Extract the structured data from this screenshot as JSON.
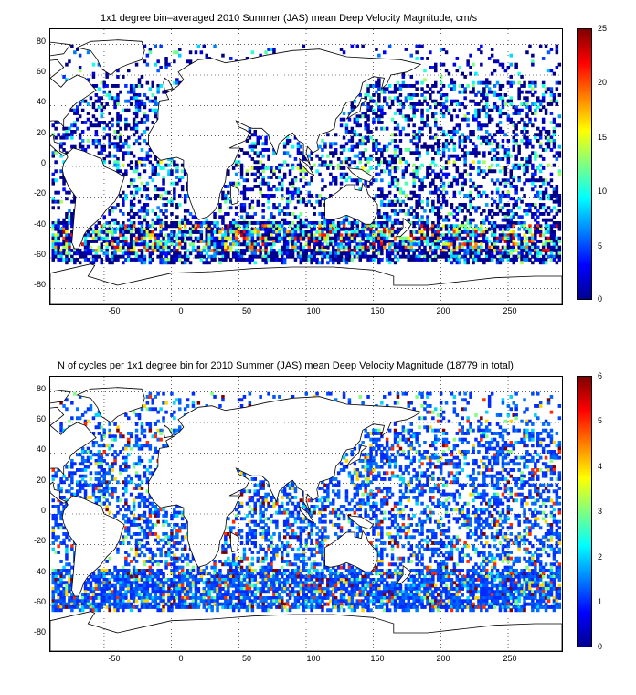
{
  "panels": [
    {
      "title": "1x1 degree bin–averaged 2010 Summer (JAS) mean Deep Velocity Magnitude, cm/s",
      "yticks": [
        "80",
        "60",
        "40",
        "20",
        "0",
        "-20",
        "-40",
        "-60",
        "-80"
      ],
      "xticks": [
        "-50",
        "0",
        "50",
        "100",
        "150",
        "200",
        "250"
      ],
      "colorbar_ticks": [
        "25",
        "20",
        "15",
        "10",
        "5",
        "0"
      ],
      "colorbar_range": [
        0,
        25
      ]
    },
    {
      "title": "N of cycles per 1x1 degree bin for 2010 Summer (JAS) mean Deep Velocity Magnitude (18779 in total)",
      "yticks": [
        "80",
        "60",
        "40",
        "20",
        "0",
        "-20",
        "-40",
        "-60",
        "-80"
      ],
      "xticks": [
        "-50",
        "0",
        "50",
        "100",
        "150",
        "200",
        "250"
      ],
      "colorbar_ticks": [
        "6",
        "5",
        "4",
        "3",
        "2",
        "1",
        "0"
      ],
      "colorbar_range": [
        0,
        6
      ]
    }
  ],
  "map": {
    "lon_range": [
      -90,
      290
    ],
    "lat_range": [
      -90,
      90
    ],
    "grid": "dotted",
    "colormap": "jet"
  }
}
